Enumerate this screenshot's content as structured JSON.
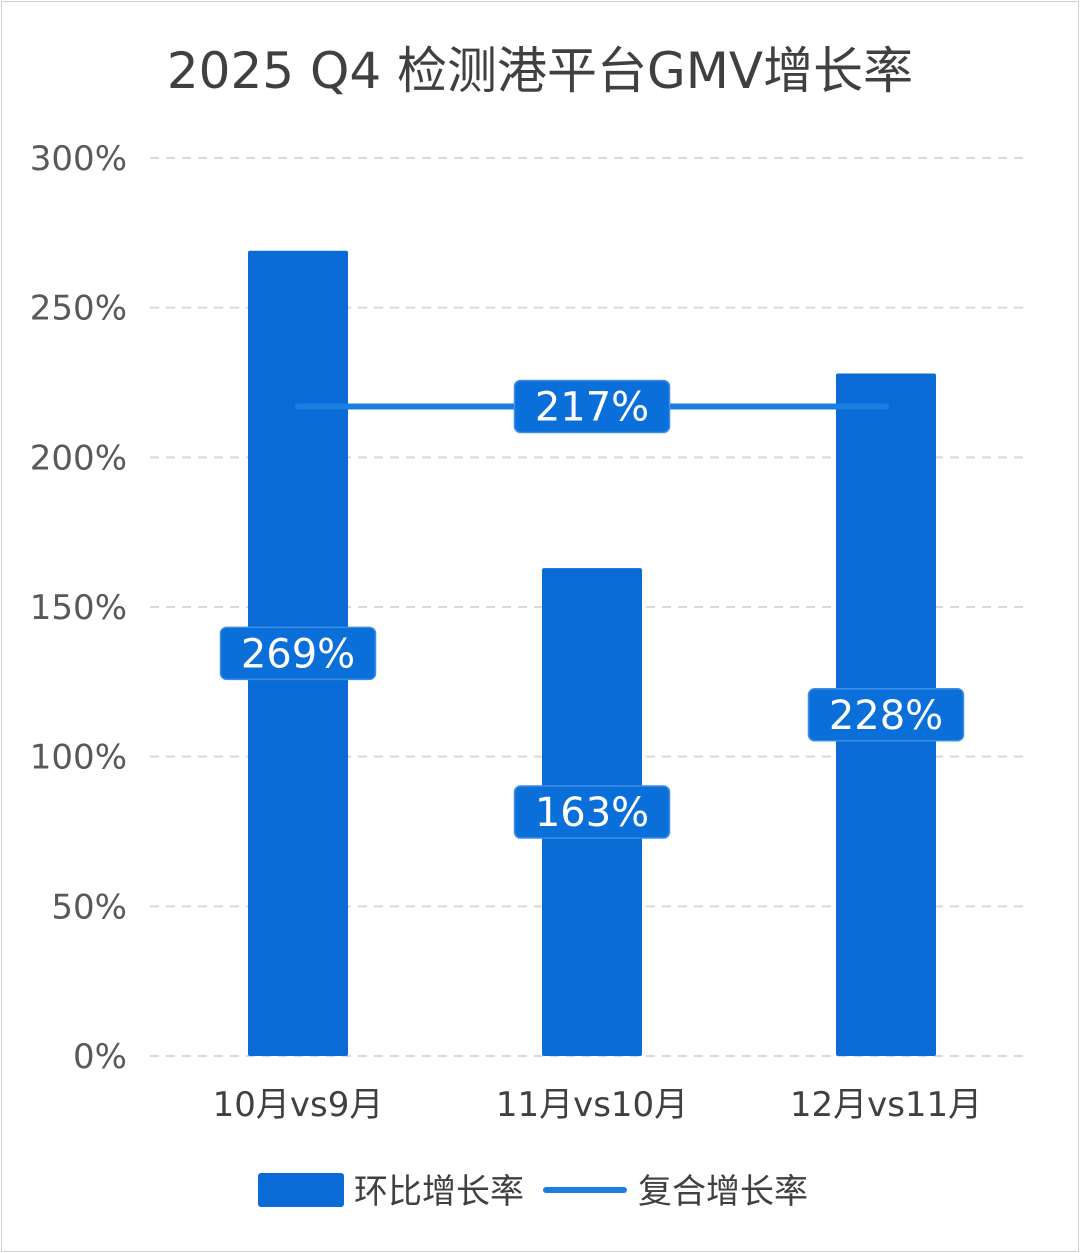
{
  "chart_data": {
    "type": "bar",
    "title": "2025 Q4 检测港平台GMV增长率",
    "categories": [
      "10月vs9月",
      "11月vs10月",
      "12月vs11月"
    ],
    "series": [
      {
        "name": "环比增长率",
        "kind": "bar",
        "values": [
          269,
          163,
          228
        ],
        "labels": [
          "269%",
          "163%",
          "228%"
        ],
        "color": "#0a6ad6"
      },
      {
        "name": "复合增长率",
        "kind": "line",
        "values": [
          217,
          217,
          217
        ],
        "labels": [
          "217%"
        ],
        "color": "#1a7fe0"
      }
    ],
    "y_unit": "%",
    "ylim": [
      0,
      300
    ],
    "yticks": [
      "0%",
      "50%",
      "100%",
      "150%",
      "200%",
      "250%",
      "300%"
    ],
    "ytick_values": [
      0,
      50,
      100,
      150,
      200,
      250,
      300
    ],
    "grid": "horizontal dashed",
    "legend_position": "bottom-center",
    "colors": {
      "bar": "#0a6ad6",
      "line": "#1a7fe0",
      "label_box": "#0b6fd9",
      "label_text": "#ffffff",
      "grid": "#d9d9d9",
      "axis_text": "#595959",
      "title_text": "#404040"
    }
  }
}
